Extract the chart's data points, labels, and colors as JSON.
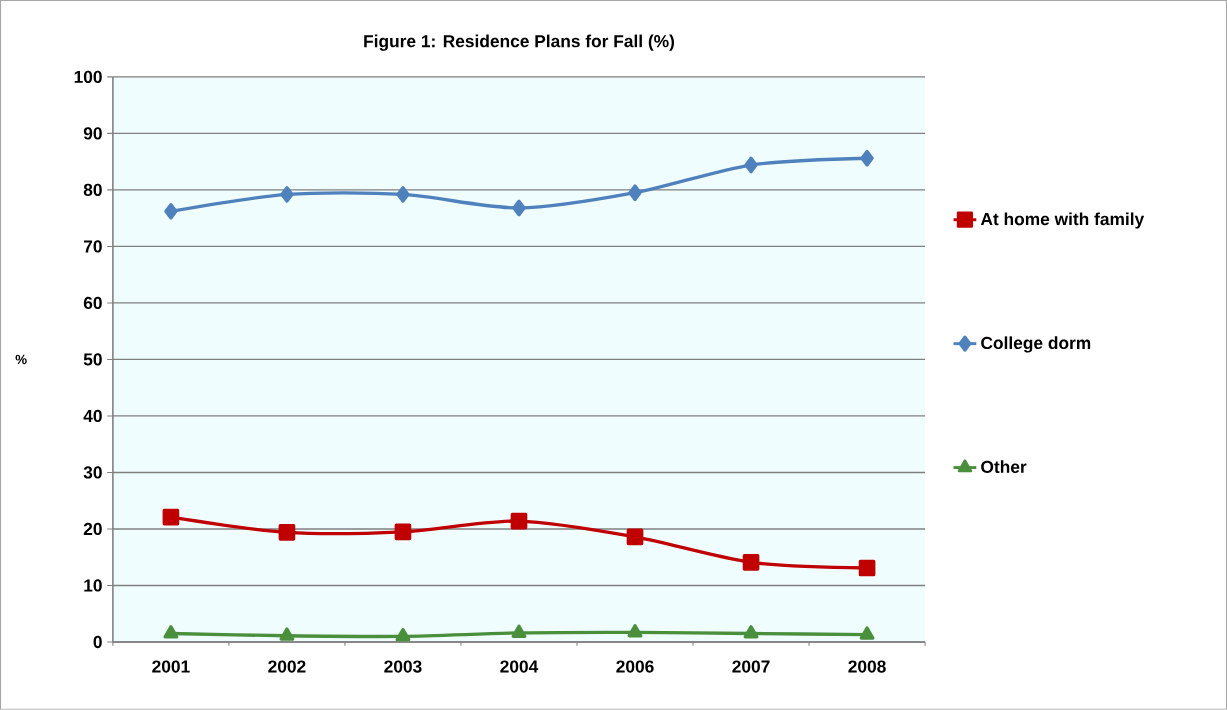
{
  "chart_data": {
    "type": "line",
    "title": "Figure 1: Residence Plans for Fall (%)",
    "ylabel": "%",
    "categories": [
      "2001",
      "2002",
      "2003",
      "2004",
      "2006",
      "2007",
      "2008"
    ],
    "series": [
      {
        "name": "At home with family",
        "color": "#c00000",
        "marker": "square",
        "values": [
          22.1,
          19.4,
          19.5,
          21.4,
          18.6,
          14.1,
          13.1
        ]
      },
      {
        "name": "College dorm",
        "color": "#4f81bd",
        "marker": "diamond",
        "values": [
          76.2,
          79.2,
          79.2,
          76.8,
          79.5,
          84.4,
          85.6
        ]
      },
      {
        "name": "Other",
        "color": "#4a8f3c",
        "marker": "triangle",
        "values": [
          1.5,
          1.1,
          1.0,
          1.6,
          1.7,
          1.5,
          1.3
        ]
      }
    ],
    "ylim": [
      0,
      100
    ],
    "yticks": [
      0,
      10,
      20,
      30,
      40,
      50,
      60,
      70,
      80,
      90,
      100
    ],
    "grid": "y",
    "legend": "right"
  }
}
